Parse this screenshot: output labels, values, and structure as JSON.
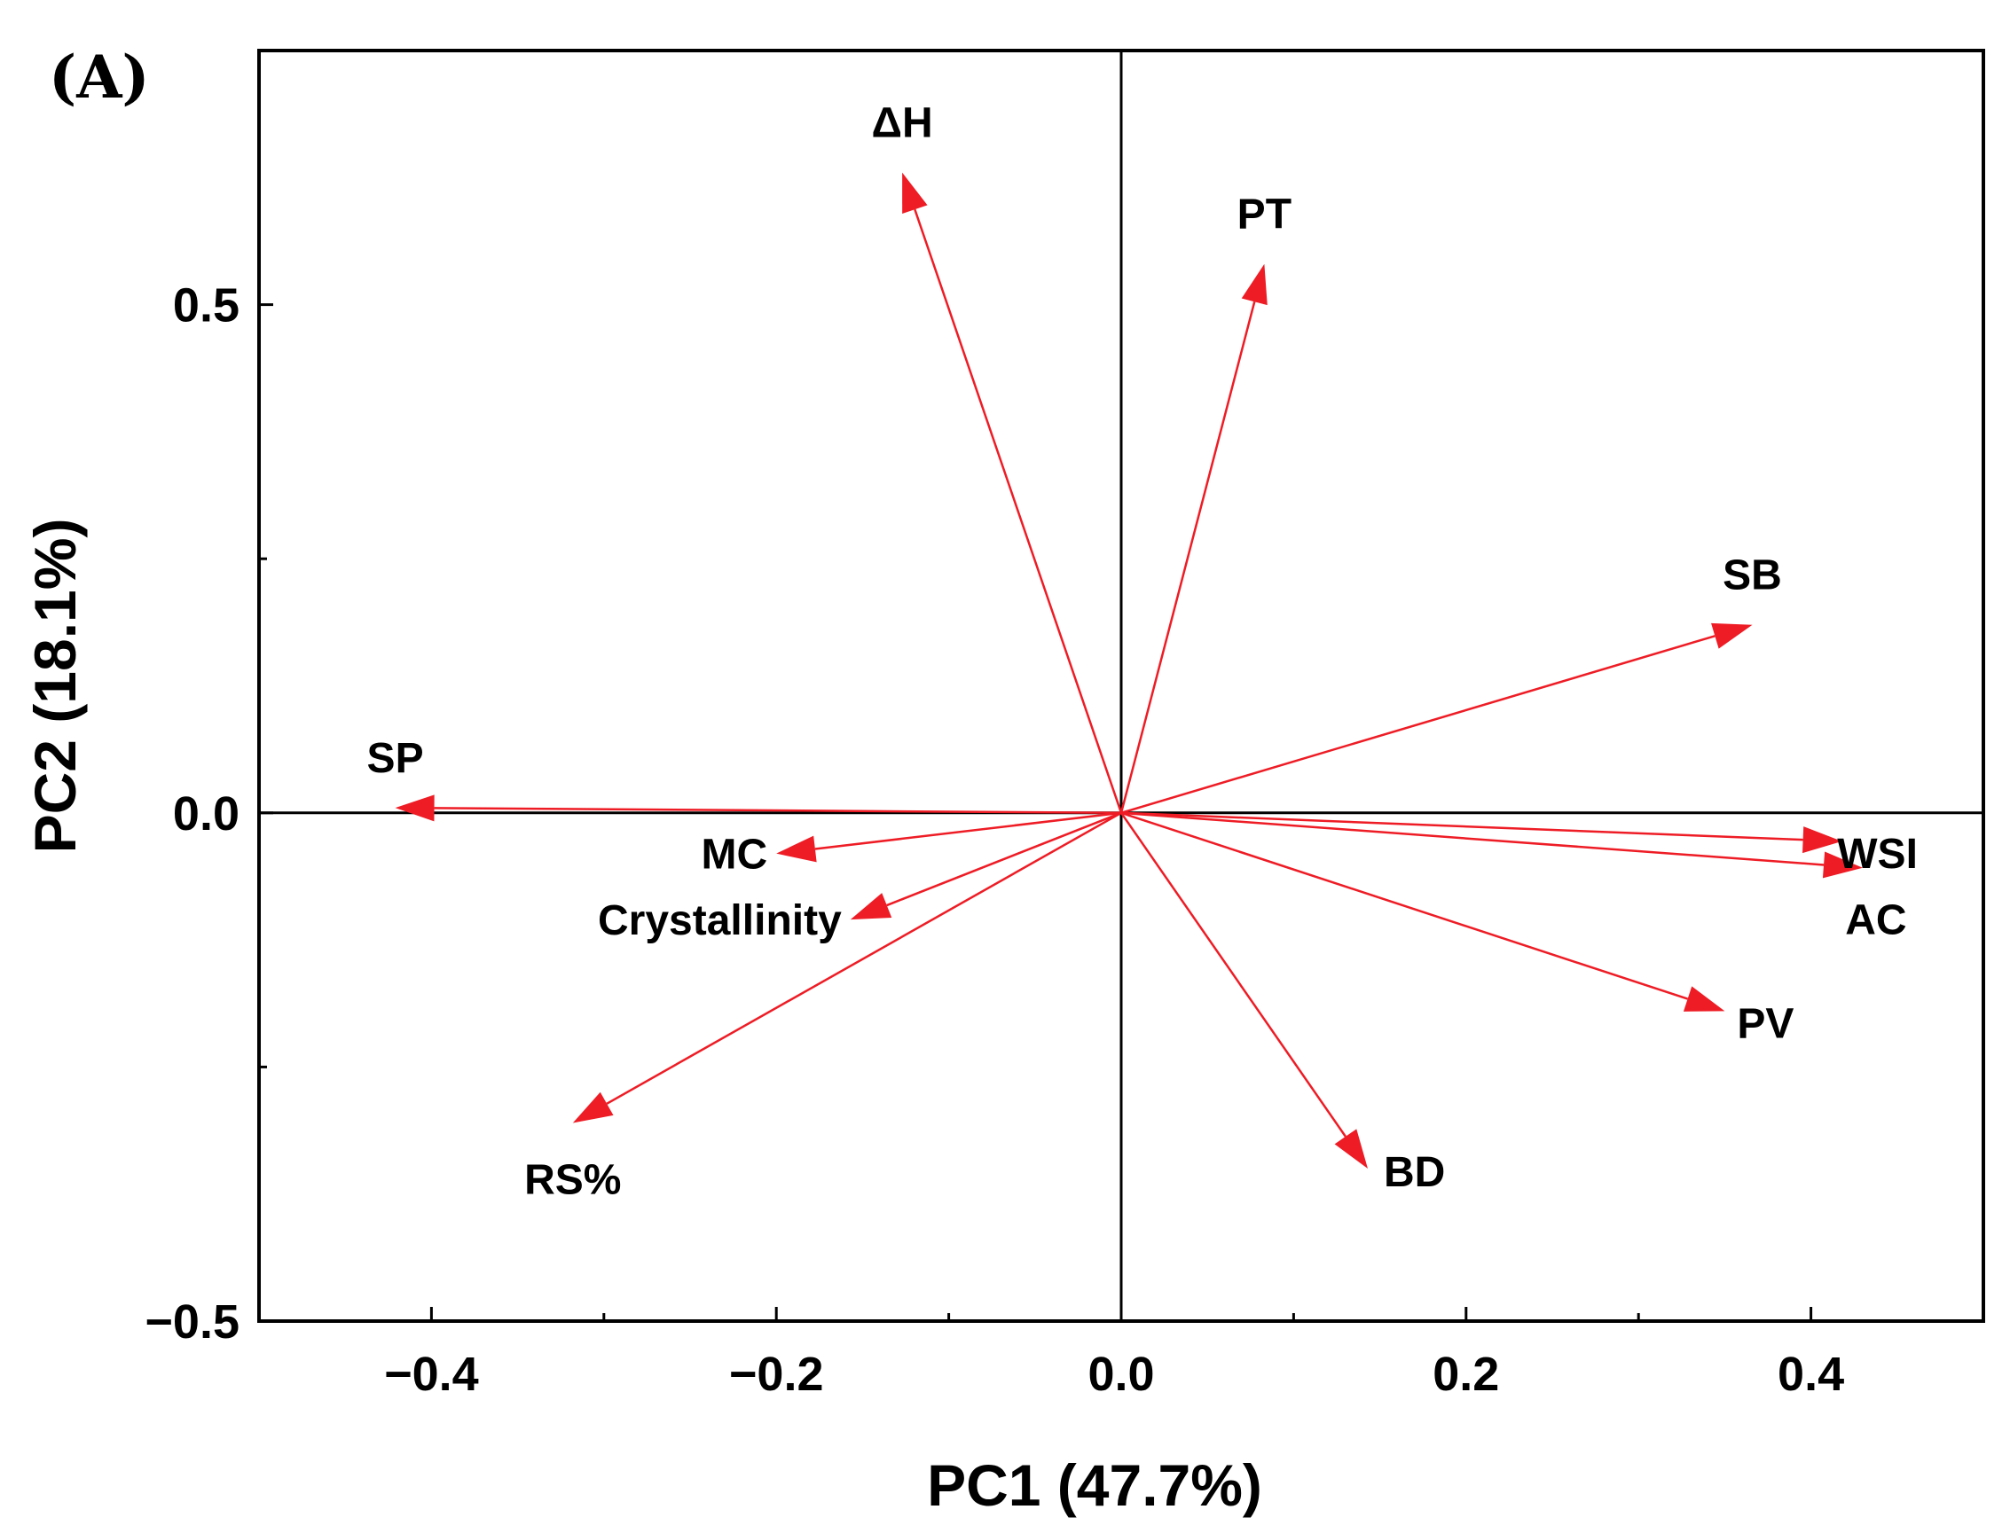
{
  "chart_data": {
    "type": "biplot",
    "panel_label": "(A)",
    "xlabel": "PC1 (47.7%)",
    "ylabel": "PC2 (18.1%)",
    "xlim": [
      -0.5,
      0.5
    ],
    "ylim": [
      -0.5,
      0.75
    ],
    "x_ticks": [
      {
        "value": -0.4,
        "label": "−0.4"
      },
      {
        "value": -0.2,
        "label": "−0.2"
      },
      {
        "value": 0.0,
        "label": "0.0"
      },
      {
        "value": 0.2,
        "label": "0.2"
      },
      {
        "value": 0.4,
        "label": "0.4"
      }
    ],
    "x_minor_ticks": [
      -0.3,
      -0.1,
      0.1,
      0.3
    ],
    "y_ticks": [
      {
        "value": -0.5,
        "label": "−0.5"
      },
      {
        "value": 0.0,
        "label": "0.0"
      },
      {
        "value": 0.5,
        "label": "0.5"
      }
    ],
    "y_minor_ticks": [
      -0.25,
      0.25
    ],
    "reference_lines": {
      "x": 0.0,
      "y": 0.0
    },
    "arrow_color": "#ee1c25",
    "loadings": [
      {
        "name": "ΔH",
        "x": -0.127,
        "y": 0.63,
        "label_pos": "above"
      },
      {
        "name": "PT",
        "x": 0.083,
        "y": 0.54,
        "label_pos": "above"
      },
      {
        "name": "SB",
        "x": 0.366,
        "y": 0.185,
        "label_pos": "above"
      },
      {
        "name": "SP",
        "x": -0.421,
        "y": 0.005,
        "label_pos": "above"
      },
      {
        "name": "WSI",
        "x": 0.418,
        "y": -0.028,
        "label_pos": "right"
      },
      {
        "name": "AC",
        "x": 0.43,
        "y": -0.054,
        "label_pos": "below-right"
      },
      {
        "name": "MC",
        "x": -0.2,
        "y": -0.04,
        "label_pos": "left"
      },
      {
        "name": "Crystallinity",
        "x": -0.157,
        "y": -0.105,
        "label_pos": "left"
      },
      {
        "name": "RS%",
        "x": -0.318,
        "y": -0.305,
        "label_pos": "below"
      },
      {
        "name": "PV",
        "x": 0.35,
        "y": -0.195,
        "label_pos": "right"
      },
      {
        "name": "BD",
        "x": 0.143,
        "y": -0.35,
        "label_pos": "right"
      }
    ]
  }
}
